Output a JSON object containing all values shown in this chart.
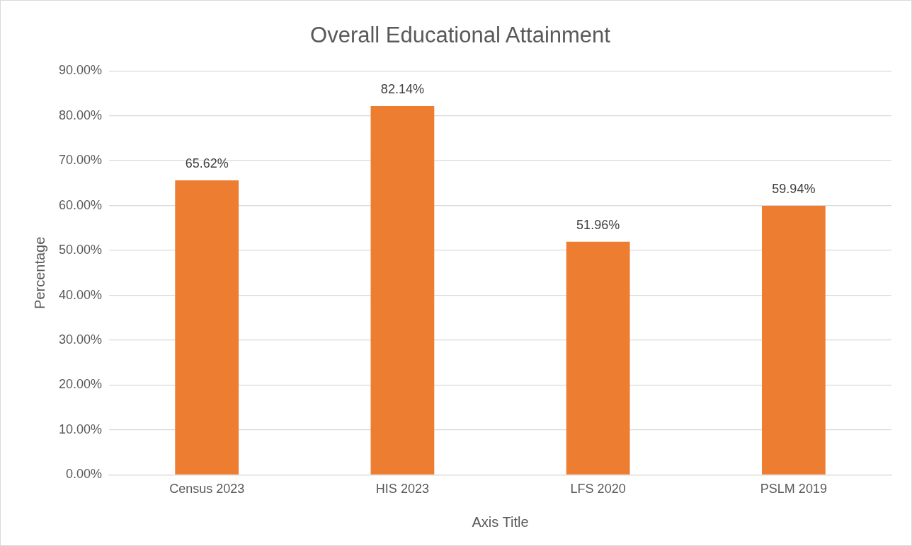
{
  "chart_data": {
    "type": "bar",
    "title": "Overall Educational Attainment",
    "xlabel": "Axis Title",
    "ylabel": "Percentage",
    "categories": [
      "Census 2023",
      "HIS 2023",
      "LFS 2020",
      "PSLM 2019"
    ],
    "series": [
      {
        "color": "#ed7d31",
        "values": [
          65.62,
          82.14,
          51.96,
          59.94
        ],
        "value_labels": [
          "65.62%",
          "82.14%",
          "51.96%",
          "59.94%"
        ]
      }
    ],
    "ylim": [
      0,
      90
    ],
    "yticks": [
      {
        "value": 0,
        "label": "0.00%"
      },
      {
        "value": 10,
        "label": "10.00%"
      },
      {
        "value": 20,
        "label": "20.00%"
      },
      {
        "value": 30,
        "label": "30.00%"
      },
      {
        "value": 40,
        "label": "40.00%"
      },
      {
        "value": 50,
        "label": "50.00%"
      },
      {
        "value": 60,
        "label": "60.00%"
      },
      {
        "value": 70,
        "label": "70.00%"
      },
      {
        "value": 80,
        "label": "80.00%"
      },
      {
        "value": 90,
        "label": "90.00%"
      }
    ],
    "grid": "y",
    "legend": false
  }
}
